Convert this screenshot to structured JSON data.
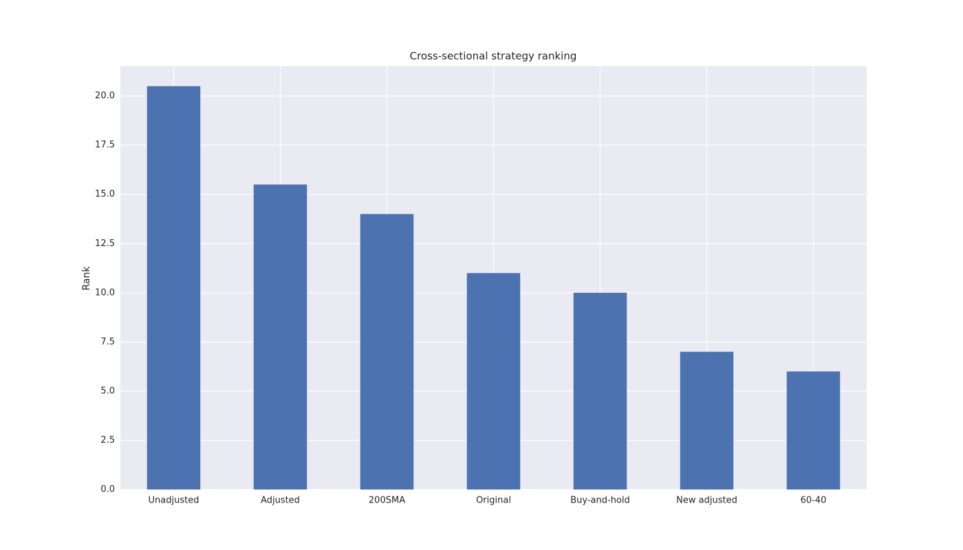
{
  "chart_data": {
    "type": "bar",
    "title": "Cross-sectional strategy ranking",
    "y_label": "Rank",
    "categories": [
      "Unadjusted",
      "Adjusted",
      "200SMA",
      "Original",
      "Buy-and-hold",
      "New adjusted",
      "60-40"
    ],
    "values": [
      20.5,
      15.5,
      14,
      11,
      10,
      7,
      6
    ],
    "color": "#4c72b0",
    "ylim": [
      0,
      21.525
    ],
    "yticks": [
      {
        "value": 0,
        "label": "0.0"
      },
      2.5,
      {
        "value": 5,
        "label": "5.0"
      },
      7.5,
      {
        "value": 10,
        "label": "10.0"
      },
      12.5,
      {
        "value": 15,
        "label": "15.0"
      },
      17.5,
      {
        "value": 20,
        "label": "20.0"
      }
    ],
    "grid": true
  }
}
